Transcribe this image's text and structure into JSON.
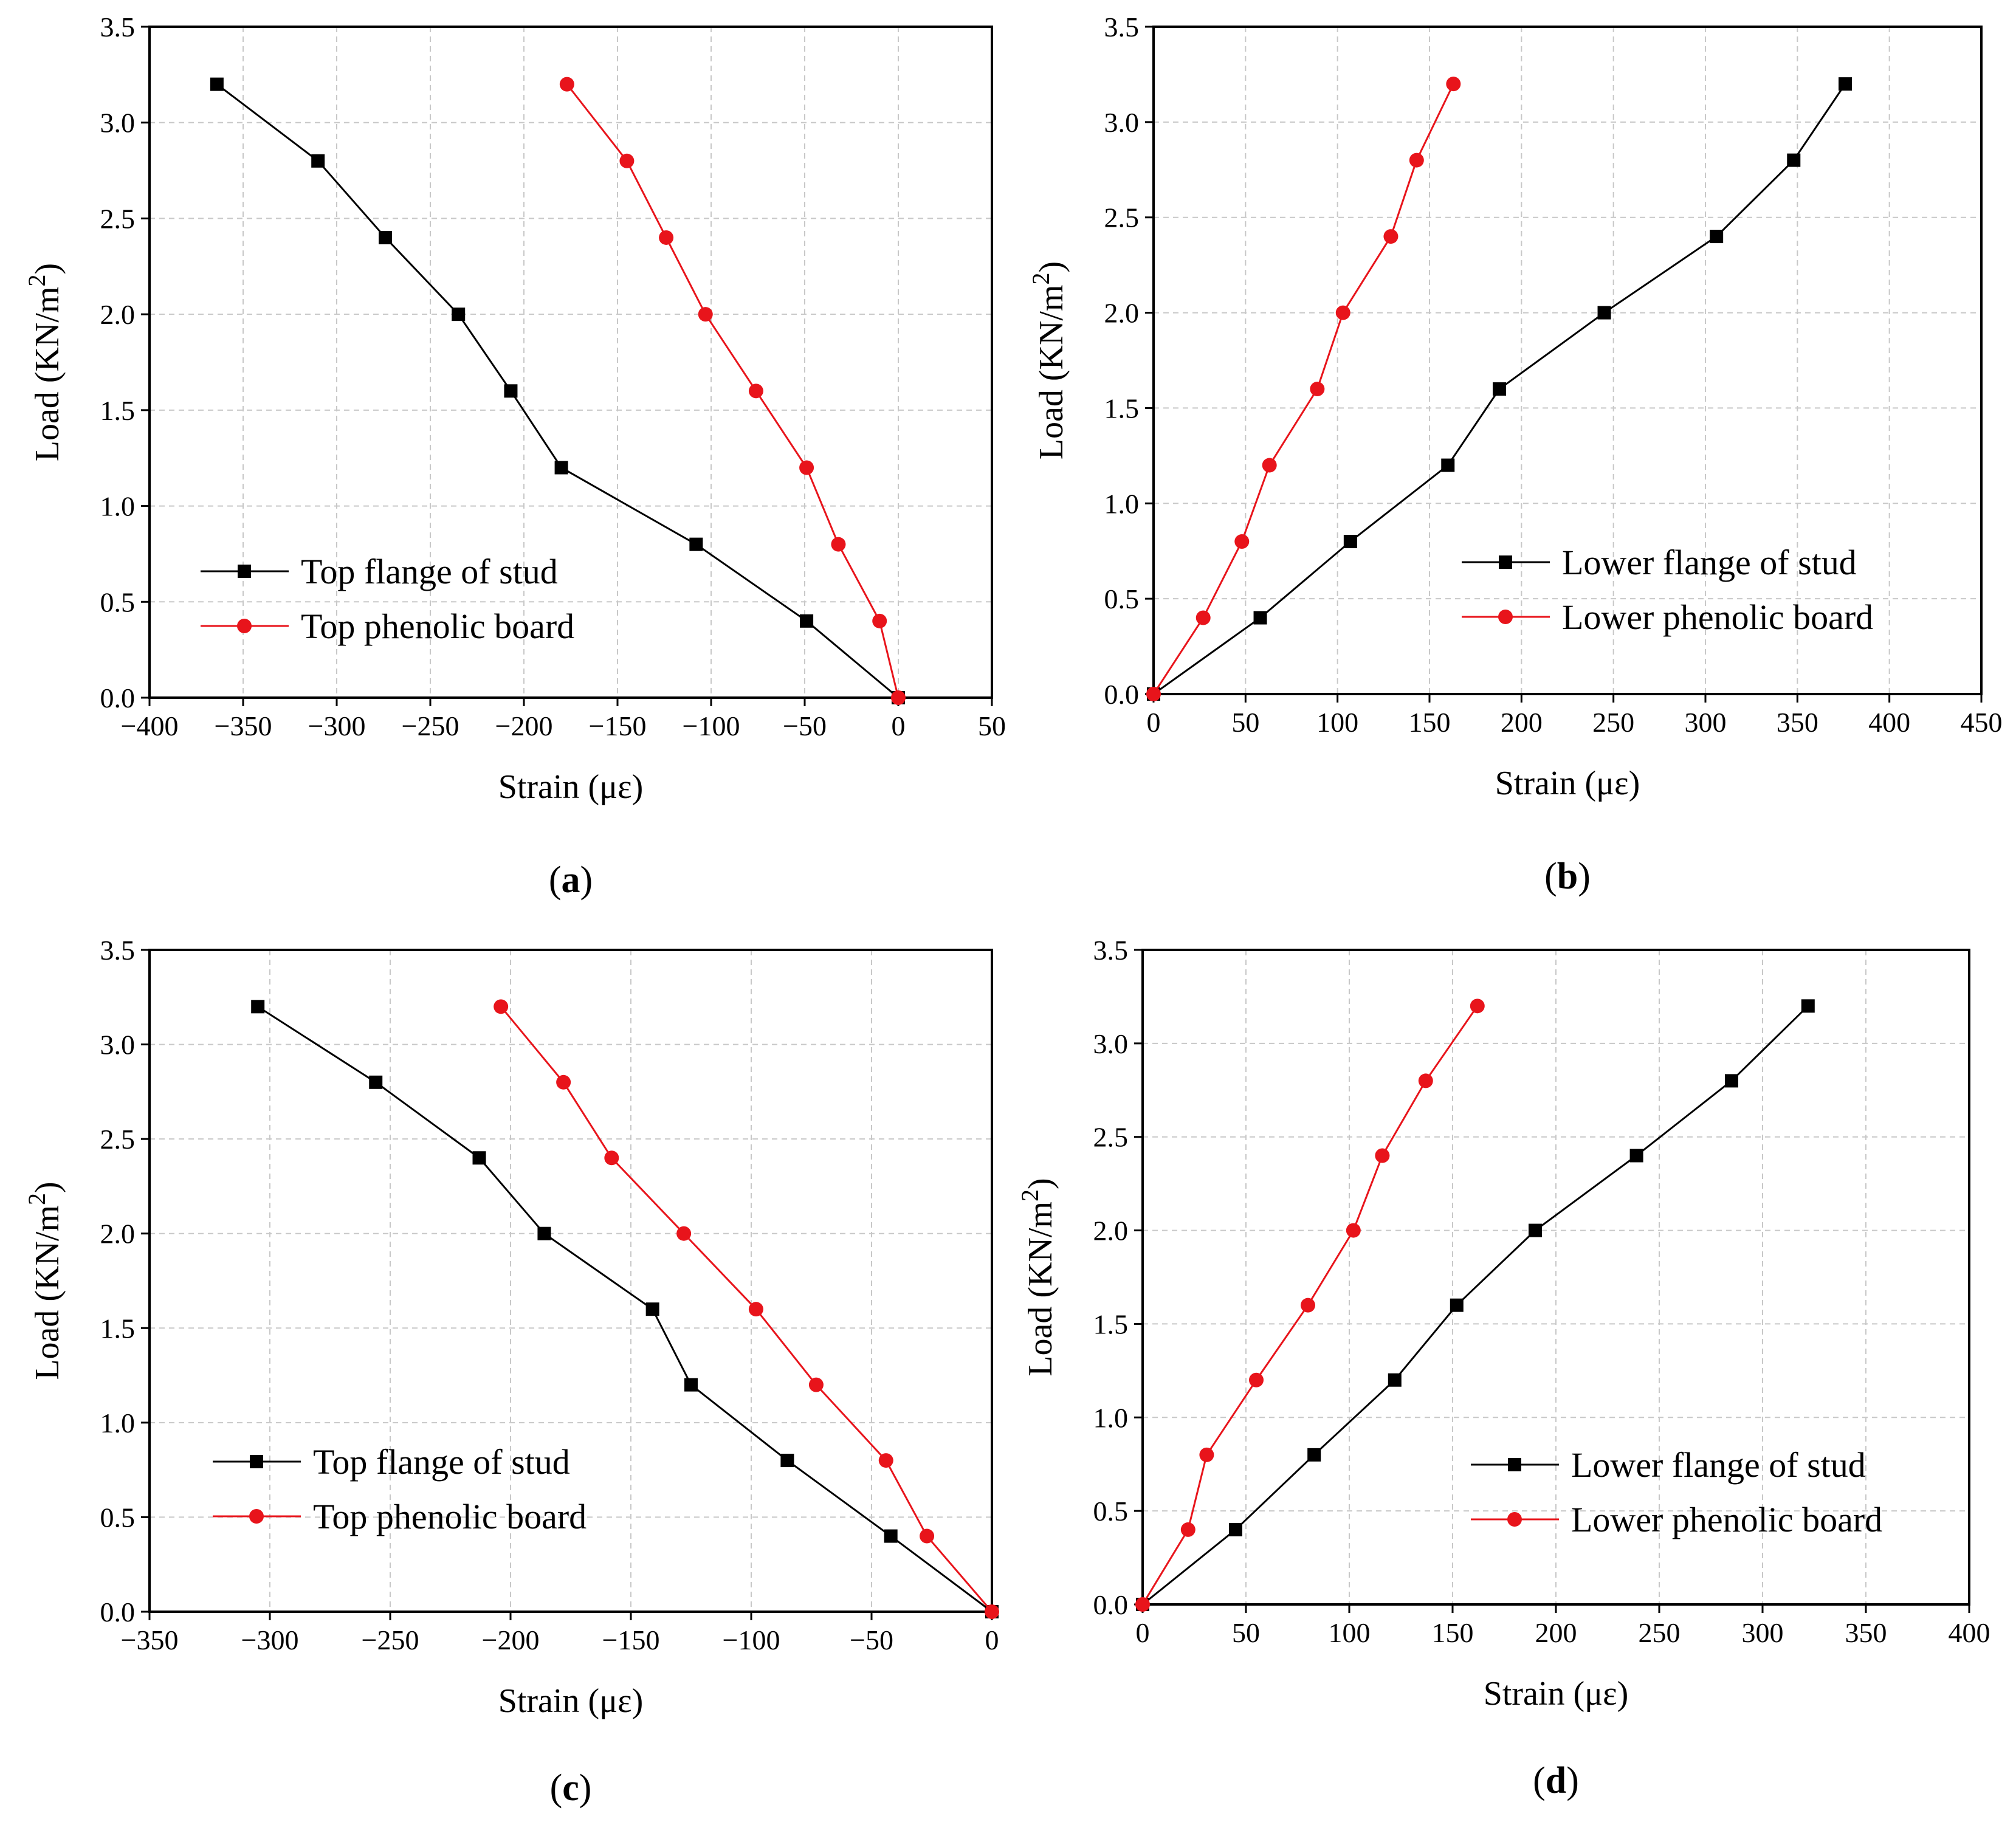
{
  "colors": {
    "black_series": "#000000",
    "red_series": "#e8141b"
  },
  "chart_data": [
    {
      "panel": "(a)",
      "panel_letter": "a",
      "type": "line",
      "xlabel": "Strain (με)",
      "ylabel": "Load (KN/m",
      "ylabel_sup": "2",
      "ylabel_close": ")",
      "xlim": [
        -400,
        50
      ],
      "ylim": [
        0,
        3.5
      ],
      "xticks": [
        -400,
        -350,
        -300,
        -250,
        -200,
        -150,
        -100,
        -50,
        0,
        50
      ],
      "xtick_labels": [
        "−400",
        "−350",
        "−300",
        "−250",
        "−200",
        "−150",
        "−100",
        "−50",
        "0",
        "50"
      ],
      "yticks": [
        0,
        0.5,
        1,
        1.5,
        2,
        2.5,
        3,
        3.5
      ],
      "ytick_labels": [
        "0.0",
        "0.5",
        "1.0",
        "1.5",
        "2.0",
        "2.5",
        "3.0",
        "3.5"
      ],
      "grid": true,
      "legend_position": "lower-left",
      "series": [
        {
          "name": "Top flange of stud",
          "marker": "square",
          "color": "#000000",
          "x": [
            0,
            -49,
            -108,
            -180,
            -207,
            -235,
            -274,
            -310,
            -364
          ],
          "y": [
            0,
            0.4,
            0.8,
            1.2,
            1.6,
            2.0,
            2.4,
            2.8,
            3.2
          ]
        },
        {
          "name": "Top phenolic board",
          "marker": "circle",
          "color": "#e8141b",
          "x": [
            0,
            -10,
            -32,
            -49,
            -76,
            -103,
            -124,
            -145,
            -177
          ],
          "y": [
            0,
            0.4,
            0.8,
            1.2,
            1.6,
            2.0,
            2.4,
            2.8,
            3.2
          ]
        }
      ]
    },
    {
      "panel": "(b)",
      "panel_letter": "b",
      "type": "line",
      "xlabel": "Strain (με)",
      "ylabel": "Load (KN/m",
      "ylabel_sup": "2",
      "ylabel_close": ")",
      "xlim": [
        0,
        450
      ],
      "ylim": [
        0,
        3.5
      ],
      "xticks": [
        0,
        50,
        100,
        150,
        200,
        250,
        300,
        350,
        400,
        450
      ],
      "xtick_labels": [
        "0",
        "50",
        "100",
        "150",
        "200",
        "250",
        "300",
        "350",
        "400",
        "450"
      ],
      "yticks": [
        0,
        0.5,
        1,
        1.5,
        2,
        2.5,
        3,
        3.5
      ],
      "ytick_labels": [
        "0.0",
        "0.5",
        "1.0",
        "1.5",
        "2.0",
        "2.5",
        "3.0",
        "3.5"
      ],
      "grid": true,
      "legend_position": "lower-right",
      "series": [
        {
          "name": "Lower flange of stud",
          "marker": "square",
          "color": "#000000",
          "x": [
            0,
            58,
            107,
            160,
            188,
            245,
            306,
            348,
            376
          ],
          "y": [
            0,
            0.4,
            0.8,
            1.2,
            1.6,
            2.0,
            2.4,
            2.8,
            3.2
          ]
        },
        {
          "name": "Lower phenolic board",
          "marker": "circle",
          "color": "#e8141b",
          "x": [
            0,
            27,
            48,
            63,
            89,
            103,
            129,
            143,
            163
          ],
          "y": [
            0,
            0.4,
            0.8,
            1.2,
            1.6,
            2.0,
            2.4,
            2.8,
            3.2
          ]
        }
      ]
    },
    {
      "panel": "(c)",
      "panel_letter": "c",
      "type": "line",
      "xlabel": "Strain (με)",
      "ylabel": "Load (KN/m",
      "ylabel_sup": "2",
      "ylabel_close": ")",
      "xlim": [
        -350,
        0
      ],
      "ylim": [
        0,
        3.5
      ],
      "xticks": [
        -350,
        -300,
        -250,
        -200,
        -150,
        -100,
        -50,
        0
      ],
      "xtick_labels": [
        "−350",
        "−300",
        "−250",
        "−200",
        "−150",
        "−100",
        "−50",
        "0"
      ],
      "yticks": [
        0,
        0.5,
        1,
        1.5,
        2,
        2.5,
        3,
        3.5
      ],
      "ytick_labels": [
        "0.0",
        "0.5",
        "1.0",
        "1.5",
        "2.0",
        "2.5",
        "3.0",
        "3.5"
      ],
      "grid": true,
      "legend_position": "lower-left",
      "series": [
        {
          "name": "Top flange of stud",
          "marker": "square",
          "color": "#000000",
          "x": [
            0,
            -42,
            -85,
            -125,
            -141,
            -186,
            -213,
            -256,
            -305
          ],
          "y": [
            0,
            0.4,
            0.8,
            1.2,
            1.6,
            2.0,
            2.4,
            2.8,
            3.2
          ]
        },
        {
          "name": "Top phenolic board",
          "marker": "circle",
          "color": "#e8141b",
          "x": [
            0,
            -27,
            -44,
            -73,
            -98,
            -128,
            -158,
            -178,
            -204
          ],
          "y": [
            0,
            0.4,
            0.8,
            1.2,
            1.6,
            2.0,
            2.4,
            2.8,
            3.2
          ]
        }
      ]
    },
    {
      "panel": "(d)",
      "panel_letter": "d",
      "type": "line",
      "xlabel": "Strain (με)",
      "ylabel": "Load (KN/m",
      "ylabel_sup": "2",
      "ylabel_close": ")",
      "xlim": [
        0,
        400
      ],
      "ylim": [
        0,
        3.5
      ],
      "xticks": [
        0,
        50,
        100,
        150,
        200,
        250,
        300,
        350,
        400
      ],
      "xtick_labels": [
        "0",
        "50",
        "100",
        "150",
        "200",
        "250",
        "300",
        "350",
        "400"
      ],
      "yticks": [
        0,
        0.5,
        1,
        1.5,
        2,
        2.5,
        3,
        3.5
      ],
      "ytick_labels": [
        "0.0",
        "0.5",
        "1.0",
        "1.5",
        "2.0",
        "2.5",
        "3.0",
        "3.5"
      ],
      "grid": true,
      "legend_position": "lower-right",
      "series": [
        {
          "name": "Lower flange of stud",
          "marker": "square",
          "color": "#000000",
          "x": [
            0,
            45,
            83,
            122,
            152,
            190,
            239,
            285,
            322
          ],
          "y": [
            0,
            0.4,
            0.8,
            1.2,
            1.6,
            2.0,
            2.4,
            2.8,
            3.2
          ]
        },
        {
          "name": "Lower phenolic board",
          "marker": "circle",
          "color": "#e8141b",
          "x": [
            0,
            22,
            31,
            55,
            80,
            102,
            116,
            137,
            162
          ],
          "y": [
            0,
            0.4,
            0.8,
            1.2,
            1.6,
            2.0,
            2.4,
            2.8,
            3.2
          ]
        }
      ]
    }
  ]
}
